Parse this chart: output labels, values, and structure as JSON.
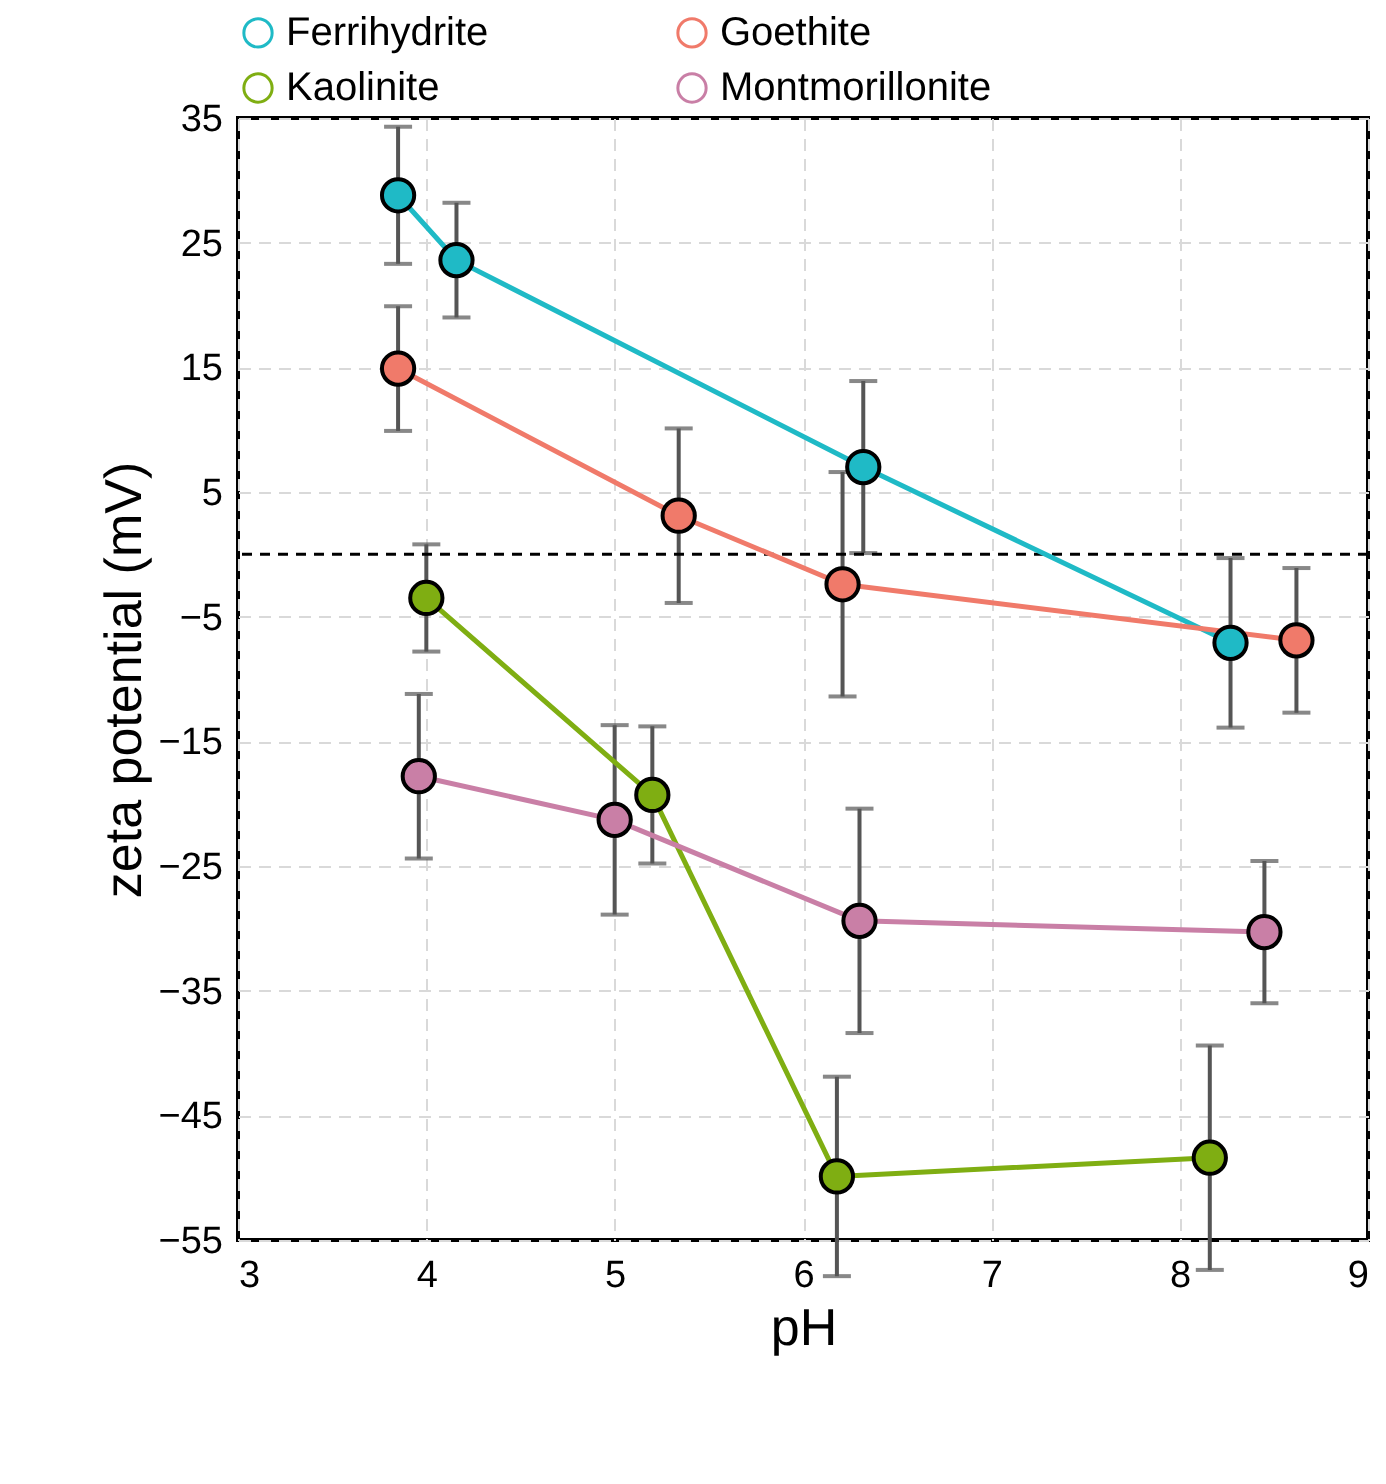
{
  "chart_data": {
    "type": "line",
    "xlabel": "pH",
    "ylabel": "zeta potential (mV)",
    "xlim": [
      3,
      9
    ],
    "xticks": [
      3,
      4,
      5,
      6,
      7,
      8,
      9
    ],
    "ylim": [
      -55,
      35
    ],
    "yticks": [
      -55,
      -45,
      -35,
      -25,
      -15,
      -5,
      5,
      15,
      25,
      35
    ],
    "grid": true,
    "legend": "top",
    "marker": "circle",
    "line_style": "solid",
    "ref_lines": [
      {
        "axis": "y",
        "value": 0,
        "color": "#000000",
        "line_style": "dashed"
      }
    ],
    "series": [
      {
        "name": "Ferrihydrite",
        "color": "#1fbac6",
        "x": [
          3.85,
          4.16,
          6.32,
          8.27
        ],
        "values": [
          28.8,
          23.6,
          7.0,
          -7.1
        ],
        "errors": [
          5.5,
          4.6,
          6.9,
          6.8
        ]
      },
      {
        "name": "Goethite",
        "color": "#f07a6a",
        "x": [
          3.85,
          5.34,
          6.21,
          8.62
        ],
        "values": [
          14.9,
          3.1,
          -2.4,
          -6.9
        ],
        "errors": [
          5,
          7,
          9,
          5.8
        ]
      },
      {
        "name": "Kaolinite",
        "color": "#7fae12",
        "x": [
          4.0,
          5.2,
          6.18,
          8.16
        ],
        "values": [
          -3.5,
          -19.3,
          -49.9,
          -48.4
        ],
        "errors": [
          4.3,
          5.5,
          8,
          9
        ]
      },
      {
        "name": "Montmorillonite",
        "color": "#c97fa6",
        "x": [
          3.96,
          5.0,
          6.3,
          8.45
        ],
        "values": [
          -17.8,
          -21.3,
          -29.4,
          -30.3
        ],
        "errors": [
          6.6,
          7.6,
          9,
          5.7
        ]
      }
    ]
  }
}
